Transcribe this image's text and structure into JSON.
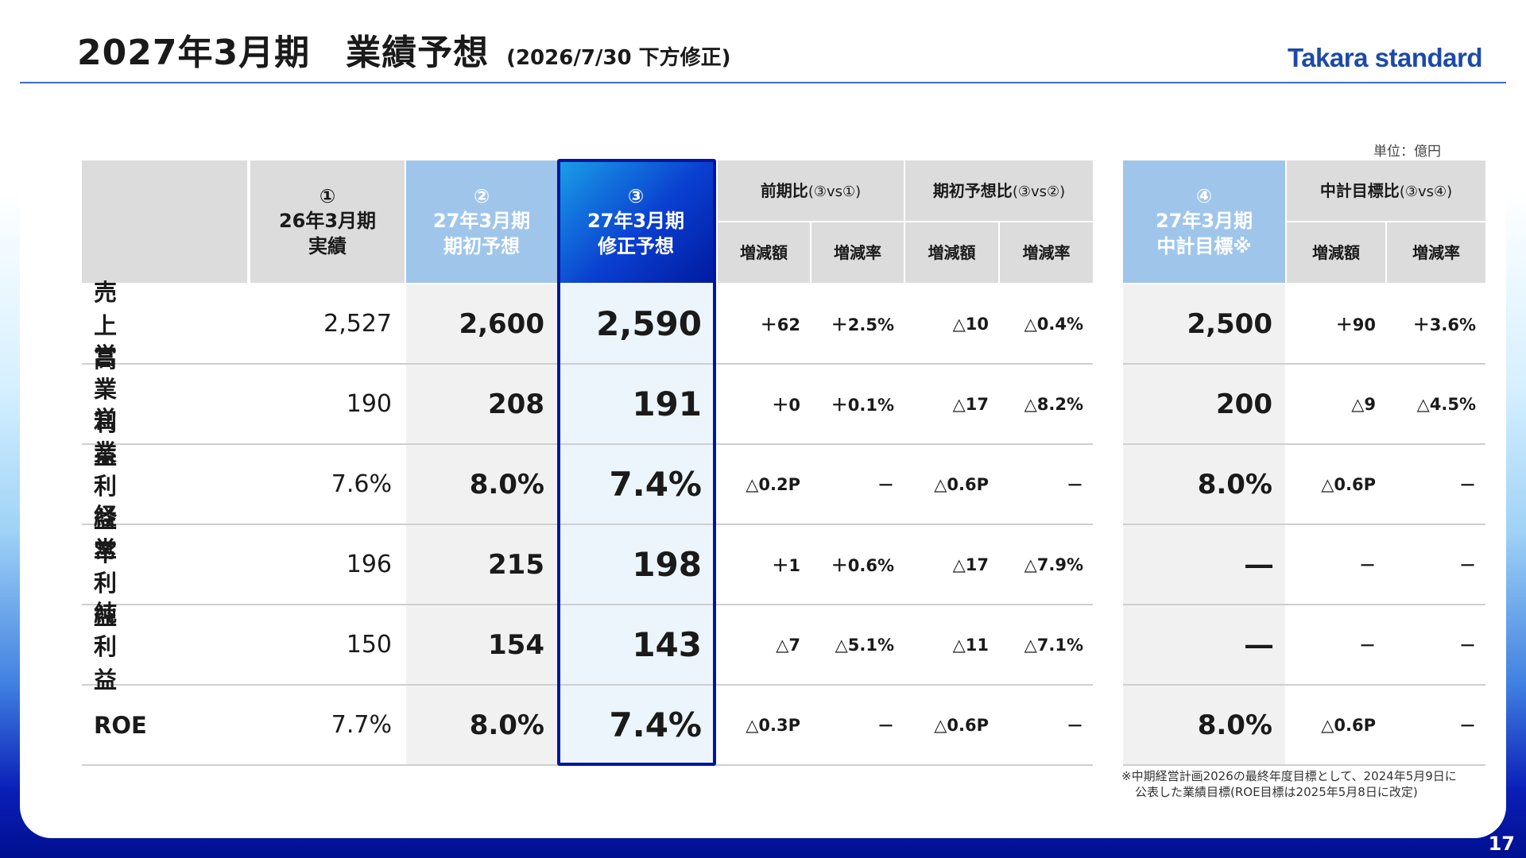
{
  "header": {
    "title": "2027年3月期　業績予想",
    "subtitle": "(2026/7/30 下方修正)",
    "logo": "Takara standard"
  },
  "unit": "単位：億円",
  "columns": {
    "c1": {
      "num": "①",
      "line1": "26年3月期",
      "line2": "実績"
    },
    "c2": {
      "num": "②",
      "line1": "27年3月期",
      "line2": "期初予想"
    },
    "c3": {
      "num": "③",
      "line1": "27年3月期",
      "line2": "修正予想"
    },
    "g1": {
      "title": "前期比",
      "note": "(③vs①)"
    },
    "g2": {
      "title": "期初予想比",
      "note": "(③vs②)"
    },
    "c4": {
      "num": "④",
      "line1": "27年3月期",
      "line2": "中計目標※"
    },
    "g3": {
      "title": "中計目標比",
      "note": "(③vs④)"
    },
    "diff": "増減額",
    "rate": "増減率"
  },
  "rows": [
    {
      "label": "売上高",
      "v1": "2,527",
      "v2": "2,600",
      "v3": "2,590",
      "d1": "＋62",
      "r1": "＋2.5%",
      "d2": "△10",
      "r2": "△0.4%",
      "v4": "2,500",
      "d3": "＋90",
      "r3": "＋3.6%"
    },
    {
      "label": "営業利益",
      "v1": "190",
      "v2": "208",
      "v3": "191",
      "d1": "＋0",
      "r1": "＋0.1%",
      "d2": "△17",
      "r2": "△8.2%",
      "v4": "200",
      "d3": "△9",
      "r3": "△4.5%"
    },
    {
      "label": "営業利益率",
      "v1": "7.6%",
      "v2": "8.0%",
      "v3": "7.4%",
      "d1": "△0.2P",
      "r1": "－",
      "d2": "△0.6P",
      "r2": "－",
      "v4": "8.0%",
      "d3": "△0.6P",
      "r3": "－"
    },
    {
      "label": "経常利益",
      "v1": "196",
      "v2": "215",
      "v3": "198",
      "d1": "＋1",
      "r1": "＋0.6%",
      "d2": "△17",
      "r2": "△7.9%",
      "v4": "―",
      "d3": "－",
      "r3": "－"
    },
    {
      "label": "純利益",
      "v1": "150",
      "v2": "154",
      "v3": "143",
      "d1": "△7",
      "r1": "△5.1%",
      "d2": "△11",
      "r2": "△7.1%",
      "v4": "―",
      "d3": "－",
      "r3": "－"
    },
    {
      "label": "ROE",
      "v1": "7.7%",
      "v2": "8.0%",
      "v3": "7.4%",
      "d1": "△0.3P",
      "r1": "－",
      "d2": "△0.6P",
      "r2": "－",
      "v4": "8.0%",
      "d3": "△0.6P",
      "r3": "－"
    }
  ],
  "footnote": {
    "line1": "※中期経営計画2026の最終年度目標として、2024年5月9日に",
    "line2": "公表した業績目標(ROE目標は2025年5月8日に改定)"
  },
  "page_number": "17"
}
